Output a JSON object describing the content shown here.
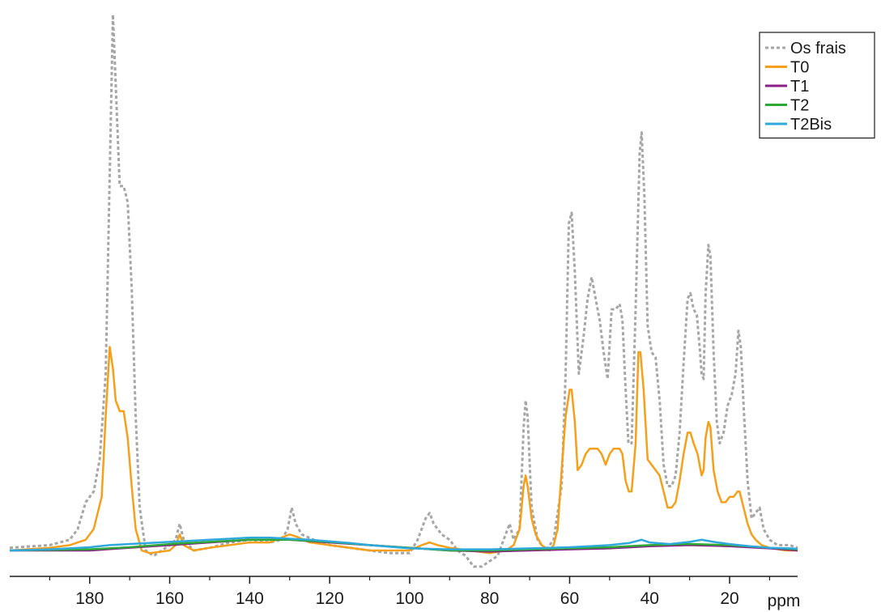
{
  "chart_data": {
    "type": "line",
    "xlabel": "ppm",
    "x_reversed": true,
    "xlim": [
      200,
      3
    ],
    "ylim": [
      -0.05,
      1.0
    ],
    "xticks_labeled": [
      180,
      160,
      140,
      120,
      100,
      80,
      60,
      40,
      20
    ],
    "xticks_minor": [
      190,
      170,
      150,
      130,
      110,
      90,
      70,
      50,
      30,
      10
    ],
    "yaxis_visible": false,
    "grid": false,
    "legend_position": "top-right",
    "series": [
      {
        "name": "Os frais",
        "color": "#a6a6a6",
        "style": "dotted",
        "points": [
          [
            200,
            0.005
          ],
          [
            190,
            0.01
          ],
          [
            185,
            0.02
          ],
          [
            183,
            0.04
          ],
          [
            181,
            0.09
          ],
          [
            179,
            0.11
          ],
          [
            177.5,
            0.17
          ],
          [
            176,
            0.33
          ],
          [
            175,
            0.7
          ],
          [
            174.2,
            1.0
          ],
          [
            173.5,
            0.87
          ],
          [
            172.5,
            0.68
          ],
          [
            171.5,
            0.68
          ],
          [
            170.5,
            0.65
          ],
          [
            169.5,
            0.49
          ],
          [
            168.5,
            0.25
          ],
          [
            167.5,
            0.08
          ],
          [
            166,
            0.0
          ],
          [
            164,
            -0.01
          ],
          [
            162,
            0.0
          ],
          [
            160,
            0.01
          ],
          [
            158.5,
            0.02
          ],
          [
            157.5,
            0.05
          ],
          [
            156.5,
            0.02
          ],
          [
            154,
            0.0
          ],
          [
            150,
            0.005
          ],
          [
            145,
            0.015
          ],
          [
            140,
            0.02
          ],
          [
            135,
            0.015
          ],
          [
            132,
            0.02
          ],
          [
            130.5,
            0.04
          ],
          [
            129.5,
            0.08
          ],
          [
            128.5,
            0.05
          ],
          [
            127,
            0.03
          ],
          [
            124,
            0.02
          ],
          [
            120,
            0.01
          ],
          [
            115,
            0.005
          ],
          [
            110,
            0.0
          ],
          [
            105,
            -0.005
          ],
          [
            100,
            -0.005
          ],
          [
            98,
            0.02
          ],
          [
            96,
            0.06
          ],
          [
            95,
            0.07
          ],
          [
            94,
            0.05
          ],
          [
            92,
            0.03
          ],
          [
            90,
            0.02
          ],
          [
            88,
            0.0
          ],
          [
            86,
            -0.01
          ],
          [
            84,
            -0.03
          ],
          [
            82,
            -0.03
          ],
          [
            80,
            -0.02
          ],
          [
            78,
            -0.01
          ],
          [
            76,
            0.03
          ],
          [
            75,
            0.05
          ],
          [
            74,
            0.02
          ],
          [
            72.5,
            0.04
          ],
          [
            71.5,
            0.23
          ],
          [
            71,
            0.28
          ],
          [
            70.5,
            0.25
          ],
          [
            69.5,
            0.08
          ],
          [
            68,
            0.02
          ],
          [
            66,
            0.0
          ],
          [
            64,
            0.02
          ],
          [
            62,
            0.12
          ],
          [
            61,
            0.33
          ],
          [
            60.2,
            0.61
          ],
          [
            59.5,
            0.63
          ],
          [
            58.7,
            0.52
          ],
          [
            57.7,
            0.33
          ],
          [
            56.5,
            0.4
          ],
          [
            55.5,
            0.47
          ],
          [
            54.5,
            0.51
          ],
          [
            53.5,
            0.47
          ],
          [
            52.5,
            0.43
          ],
          [
            51.5,
            0.37
          ],
          [
            50.5,
            0.32
          ],
          [
            49.5,
            0.45
          ],
          [
            48.5,
            0.45
          ],
          [
            47.5,
            0.46
          ],
          [
            46.8,
            0.43
          ],
          [
            46,
            0.3
          ],
          [
            45.3,
            0.2
          ],
          [
            44.5,
            0.2
          ],
          [
            43.5,
            0.45
          ],
          [
            42.5,
            0.74
          ],
          [
            42,
            0.78
          ],
          [
            41.3,
            0.66
          ],
          [
            40.5,
            0.42
          ],
          [
            39.5,
            0.37
          ],
          [
            38.5,
            0.36
          ],
          [
            37.5,
            0.28
          ],
          [
            36.5,
            0.16
          ],
          [
            35.5,
            0.12
          ],
          [
            34.5,
            0.12
          ],
          [
            33.5,
            0.14
          ],
          [
            32.5,
            0.22
          ],
          [
            31.5,
            0.35
          ],
          [
            30.5,
            0.47
          ],
          [
            29.8,
            0.48
          ],
          [
            29,
            0.45
          ],
          [
            28.2,
            0.44
          ],
          [
            27.5,
            0.38
          ],
          [
            27,
            0.33
          ],
          [
            26.5,
            0.32
          ],
          [
            26,
            0.48
          ],
          [
            25.3,
            0.57
          ],
          [
            24.8,
            0.55
          ],
          [
            24,
            0.37
          ],
          [
            23.2,
            0.24
          ],
          [
            22.5,
            0.2
          ],
          [
            21.5,
            0.22
          ],
          [
            20.5,
            0.27
          ],
          [
            19.5,
            0.29
          ],
          [
            18.5,
            0.33
          ],
          [
            17.8,
            0.41
          ],
          [
            17.2,
            0.38
          ],
          [
            16.5,
            0.27
          ],
          [
            15.5,
            0.13
          ],
          [
            14.5,
            0.06
          ],
          [
            13.5,
            0.07
          ],
          [
            12.5,
            0.08
          ],
          [
            11.5,
            0.04
          ],
          [
            10,
            0.02
          ],
          [
            8,
            0.01
          ],
          [
            5,
            0.01
          ],
          [
            3,
            0.005
          ]
        ]
      },
      {
        "name": "T0",
        "color": "#f5a01a",
        "style": "solid",
        "points": [
          [
            200,
            0.0
          ],
          [
            190,
            0.005
          ],
          [
            185,
            0.01
          ],
          [
            181,
            0.02
          ],
          [
            179,
            0.04
          ],
          [
            177,
            0.1
          ],
          [
            176,
            0.25
          ],
          [
            175,
            0.38
          ],
          [
            174.2,
            0.34
          ],
          [
            173.5,
            0.28
          ],
          [
            172.5,
            0.26
          ],
          [
            171.5,
            0.26
          ],
          [
            170.5,
            0.21
          ],
          [
            169.5,
            0.12
          ],
          [
            168.5,
            0.04
          ],
          [
            167,
            0.0
          ],
          [
            165,
            -0.005
          ],
          [
            160,
            0.0
          ],
          [
            158.5,
            0.01
          ],
          [
            157.5,
            0.03
          ],
          [
            156.5,
            0.01
          ],
          [
            154,
            0.0
          ],
          [
            150,
            0.005
          ],
          [
            145,
            0.01
          ],
          [
            140,
            0.015
          ],
          [
            135,
            0.015
          ],
          [
            130,
            0.03
          ],
          [
            128,
            0.025
          ],
          [
            125,
            0.015
          ],
          [
            120,
            0.01
          ],
          [
            110,
            0.0
          ],
          [
            100,
            0.0
          ],
          [
            97,
            0.01
          ],
          [
            95,
            0.015
          ],
          [
            93,
            0.01
          ],
          [
            90,
            0.005
          ],
          [
            85,
            0.0
          ],
          [
            80,
            -0.005
          ],
          [
            76,
            0.0
          ],
          [
            74,
            0.01
          ],
          [
            72.5,
            0.04
          ],
          [
            71.5,
            0.12
          ],
          [
            71,
            0.14
          ],
          [
            70.5,
            0.12
          ],
          [
            69.5,
            0.06
          ],
          [
            68.5,
            0.03
          ],
          [
            67,
            0.01
          ],
          [
            65,
            0.0
          ],
          [
            64,
            0.01
          ],
          [
            63,
            0.04
          ],
          [
            62,
            0.15
          ],
          [
            61,
            0.25
          ],
          [
            60,
            0.3
          ],
          [
            59.5,
            0.3
          ],
          [
            58.7,
            0.24
          ],
          [
            58,
            0.15
          ],
          [
            57,
            0.16
          ],
          [
            56,
            0.18
          ],
          [
            55,
            0.19
          ],
          [
            54,
            0.19
          ],
          [
            53,
            0.19
          ],
          [
            52,
            0.18
          ],
          [
            51,
            0.16
          ],
          [
            50,
            0.18
          ],
          [
            49,
            0.19
          ],
          [
            48,
            0.19
          ],
          [
            47.5,
            0.19
          ],
          [
            46.8,
            0.18
          ],
          [
            46,
            0.13
          ],
          [
            45.2,
            0.11
          ],
          [
            44.5,
            0.11
          ],
          [
            43.5,
            0.2
          ],
          [
            42.8,
            0.37
          ],
          [
            42.3,
            0.37
          ],
          [
            41.5,
            0.3
          ],
          [
            40.5,
            0.17
          ],
          [
            39.5,
            0.16
          ],
          [
            38.5,
            0.15
          ],
          [
            37.5,
            0.14
          ],
          [
            36.5,
            0.11
          ],
          [
            35.5,
            0.08
          ],
          [
            34.5,
            0.08
          ],
          [
            33.5,
            0.09
          ],
          [
            32.5,
            0.13
          ],
          [
            31.5,
            0.18
          ],
          [
            30.5,
            0.22
          ],
          [
            29.8,
            0.22
          ],
          [
            29,
            0.2
          ],
          [
            28,
            0.18
          ],
          [
            27,
            0.14
          ],
          [
            26.5,
            0.15
          ],
          [
            26,
            0.21
          ],
          [
            25.3,
            0.24
          ],
          [
            24.8,
            0.23
          ],
          [
            24,
            0.15
          ],
          [
            23,
            0.11
          ],
          [
            22,
            0.09
          ],
          [
            21,
            0.09
          ],
          [
            20,
            0.1
          ],
          [
            19,
            0.1
          ],
          [
            18,
            0.11
          ],
          [
            17.5,
            0.11
          ],
          [
            16.5,
            0.08
          ],
          [
            15.5,
            0.05
          ],
          [
            14.5,
            0.03
          ],
          [
            13.5,
            0.02
          ],
          [
            12,
            0.01
          ],
          [
            10,
            0.005
          ],
          [
            6,
            0.0
          ],
          [
            3,
            0.0
          ]
        ]
      },
      {
        "name": "T1",
        "color": "#8b1f88",
        "style": "solid",
        "points": [
          [
            200,
            0.0
          ],
          [
            180,
            0.0
          ],
          [
            170,
            0.005
          ],
          [
            160,
            0.01
          ],
          [
            150,
            0.015
          ],
          [
            140,
            0.02
          ],
          [
            130,
            0.02
          ],
          [
            120,
            0.015
          ],
          [
            110,
            0.01
          ],
          [
            100,
            0.005
          ],
          [
            90,
            0.0
          ],
          [
            80,
            -0.002
          ],
          [
            70,
            0.0
          ],
          [
            60,
            0.002
          ],
          [
            50,
            0.004
          ],
          [
            40,
            0.008
          ],
          [
            30,
            0.01
          ],
          [
            20,
            0.008
          ],
          [
            10,
            0.004
          ],
          [
            3,
            0.0
          ]
        ]
      },
      {
        "name": "T2",
        "color": "#2da836",
        "style": "solid",
        "points": [
          [
            200,
            0.0
          ],
          [
            180,
            0.002
          ],
          [
            170,
            0.006
          ],
          [
            160,
            0.012
          ],
          [
            150,
            0.016
          ],
          [
            140,
            0.02
          ],
          [
            130,
            0.02
          ],
          [
            120,
            0.016
          ],
          [
            110,
            0.01
          ],
          [
            100,
            0.005
          ],
          [
            90,
            0.0
          ],
          [
            80,
            0.0
          ],
          [
            70,
            0.002
          ],
          [
            60,
            0.004
          ],
          [
            50,
            0.006
          ],
          [
            40,
            0.01
          ],
          [
            30,
            0.012
          ],
          [
            20,
            0.01
          ],
          [
            10,
            0.005
          ],
          [
            3,
            0.002
          ]
        ]
      },
      {
        "name": "T2Bis",
        "color": "#2fa8dc",
        "style": "solid",
        "points": [
          [
            200,
            0.0
          ],
          [
            190,
            0.002
          ],
          [
            180,
            0.006
          ],
          [
            175,
            0.01
          ],
          [
            170,
            0.012
          ],
          [
            165,
            0.014
          ],
          [
            160,
            0.016
          ],
          [
            155,
            0.018
          ],
          [
            150,
            0.02
          ],
          [
            145,
            0.022
          ],
          [
            140,
            0.024
          ],
          [
            135,
            0.024
          ],
          [
            130,
            0.022
          ],
          [
            125,
            0.02
          ],
          [
            120,
            0.017
          ],
          [
            115,
            0.014
          ],
          [
            110,
            0.01
          ],
          [
            105,
            0.007
          ],
          [
            100,
            0.004
          ],
          [
            95,
            0.003
          ],
          [
            90,
            0.002
          ],
          [
            85,
            0.002
          ],
          [
            80,
            0.002
          ],
          [
            75,
            0.003
          ],
          [
            70,
            0.004
          ],
          [
            65,
            0.005
          ],
          [
            60,
            0.006
          ],
          [
            55,
            0.008
          ],
          [
            50,
            0.01
          ],
          [
            45,
            0.014
          ],
          [
            42,
            0.02
          ],
          [
            40,
            0.015
          ],
          [
            35,
            0.012
          ],
          [
            30,
            0.016
          ],
          [
            27,
            0.02
          ],
          [
            24,
            0.016
          ],
          [
            20,
            0.012
          ],
          [
            15,
            0.008
          ],
          [
            10,
            0.005
          ],
          [
            5,
            0.004
          ],
          [
            3,
            0.003
          ]
        ]
      }
    ]
  }
}
